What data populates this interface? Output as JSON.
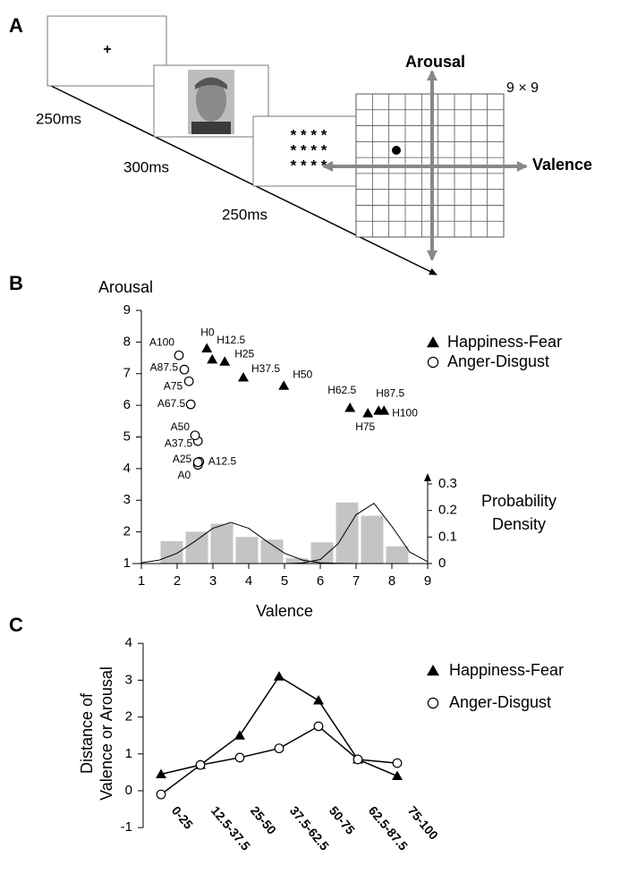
{
  "diagram": {
    "label": "A",
    "durations": [
      "250ms",
      "300ms",
      "250ms"
    ],
    "fixation": "+",
    "mask_rows": [
      "* * * *",
      "* * * *",
      "* * * *"
    ],
    "grid_label": "9 × 9",
    "x_axis": "Valence",
    "y_axis": "Arousal"
  },
  "chart_data": [
    {
      "type": "scatter",
      "label": "B",
      "ylabel": "Arousal",
      "xlabel": "Valence",
      "y2label_lines": [
        "Probability",
        "Density"
      ],
      "xlim": [
        1,
        9
      ],
      "xticks": [
        1,
        2,
        3,
        4,
        5,
        6,
        7,
        8,
        9
      ],
      "ylim": [
        1,
        9
      ],
      "yticks": [
        1,
        2,
        3,
        4,
        5,
        6,
        7,
        8,
        9
      ],
      "y2lim": [
        0,
        0.3
      ],
      "y2ticks": [
        0,
        0.1,
        0.2,
        0.3
      ],
      "legend": "upper right",
      "series": [
        {
          "name": "Happiness-Fear",
          "marker": "triangle",
          "color": "#000000",
          "labels": [
            "H0",
            "H12.5",
            "H25",
            "H37.5",
            "H50",
            "H62.5",
            "H75",
            "H87.5",
            "H100"
          ],
          "x": [
            2.83,
            2.98,
            3.33,
            3.85,
            4.98,
            6.83,
            7.33,
            7.63,
            7.78
          ],
          "y": [
            7.8,
            7.45,
            7.38,
            6.88,
            6.62,
            5.92,
            5.75,
            5.83,
            5.83
          ]
        },
        {
          "name": "Anger-Disgust",
          "marker": "circle",
          "color": "#000000",
          "labels": [
            "A0",
            "A12.5",
            "A25",
            "A37.5",
            "A50",
            "A67.5",
            "A75",
            "A87.5",
            "A100"
          ],
          "x": [
            2.58,
            2.62,
            2.58,
            2.58,
            2.5,
            2.38,
            2.33,
            2.2,
            2.05
          ],
          "y": [
            4.12,
            4.22,
            4.2,
            4.87,
            5.05,
            6.03,
            6.76,
            7.13,
            7.58
          ]
        }
      ],
      "histogram": {
        "axis": "y2",
        "color": "#c4c4c4",
        "bins": [
          1.5,
          2.2,
          2.9,
          3.6,
          4.3,
          5.0,
          5.7,
          6.4,
          7.1,
          7.8,
          8.5
        ],
        "values": [
          0.084,
          0.12,
          0.15,
          0.1,
          0.09,
          0.02,
          0.08,
          0.23,
          0.18,
          0.065
        ]
      },
      "density": {
        "axis": "y2",
        "color": "#000000",
        "x": [
          1,
          1.5,
          2,
          2.5,
          3,
          3.5,
          4,
          4.5,
          5,
          5.5,
          6,
          6.5,
          7,
          7.5,
          8,
          8.5,
          9
        ],
        "series": [
          {
            "values": [
              0.003,
              0.013,
              0.039,
              0.084,
              0.133,
              0.155,
              0.133,
              0.084,
              0.039,
              0.013,
              0.003,
              0.001,
              0,
              0,
              0,
              0,
              0
            ]
          },
          {
            "values": [
              0,
              0,
              0,
              0,
              0,
              0,
              0,
              0,
              0,
              0.002,
              0.015,
              0.075,
              0.184,
              0.227,
              0.14,
              0.043,
              0.007
            ]
          }
        ]
      }
    },
    {
      "type": "line",
      "label": "C",
      "ylabel_lines": [
        "Distance of",
        "Valence or Arousal"
      ],
      "categories": [
        "0-25",
        "12.5-37.5",
        "25-50",
        "37.5-62.5",
        "50-75",
        "62.5-87.5",
        "75-100"
      ],
      "ylim": [
        -1,
        4
      ],
      "yticks": [
        -1,
        0,
        1,
        2,
        3,
        4
      ],
      "legend": "upper right",
      "series": [
        {
          "name": "Happiness-Fear",
          "marker": "triangle",
          "color": "#000000",
          "values": [
            0.45,
            0.7,
            1.5,
            3.1,
            2.45,
            0.85,
            0.4
          ]
        },
        {
          "name": "Anger-Disgust",
          "marker": "circle",
          "color": "#000000",
          "values": [
            -0.1,
            0.7,
            0.9,
            1.15,
            1.75,
            0.85,
            0.75
          ]
        }
      ]
    }
  ]
}
